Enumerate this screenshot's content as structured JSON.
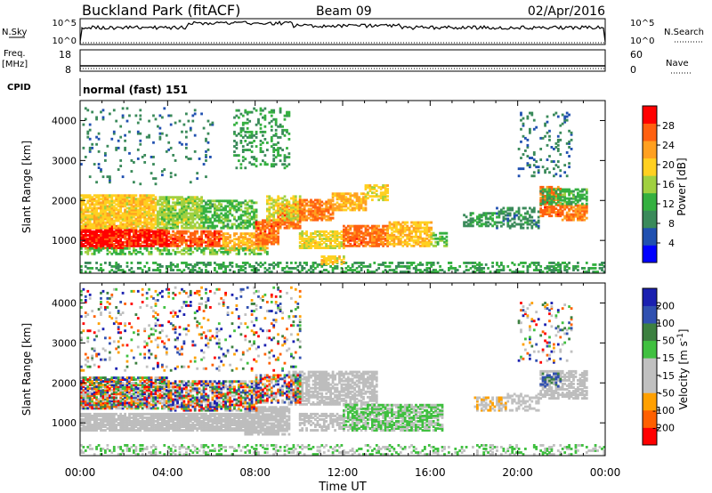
{
  "header": {
    "station": "Buckland Park (fitACF)",
    "beam": "Beam 09",
    "date": "02/Apr/2016"
  },
  "nsky_panel": {
    "left_label": "N.Sky",
    "left_ticks": [
      "10^5",
      "10^0"
    ],
    "right_ticks": [
      "10^5",
      "10^0"
    ],
    "right_label": "N.Search"
  },
  "freq_panel": {
    "left_label_1": "Freq.",
    "left_label_2": "[MHz]",
    "left_ticks": [
      "18",
      "8"
    ],
    "right_ticks": [
      "60",
      "0"
    ],
    "right_label": "Nave"
  },
  "cpid_panel": {
    "label": "CPID",
    "value": "normal (fast) 151"
  },
  "x_axis": {
    "label": "Time UT",
    "ticks": [
      "00:00",
      "04:00",
      "08:00",
      "12:00",
      "16:00",
      "20:00",
      "00:00"
    ]
  },
  "colors": {
    "power": [
      "#0000ff",
      "#2050b0",
      "#3a8a5a",
      "#34b040",
      "#a0d040",
      "#ffd020",
      "#ffa020",
      "#ff6010",
      "#ff0000"
    ],
    "velocity": [
      "#ff0000",
      "#ff6000",
      "#ffa000",
      "#c0c0c0",
      "#c0c0c0",
      "#40c040",
      "#3c8040",
      "#3050b0",
      "#1a20b0"
    ],
    "ground_scatter": "#bdbdbd"
  },
  "chart_data": [
    {
      "type": "heatmap",
      "name": "power-panel",
      "x_unit": "hours UT",
      "xlim": [
        0,
        24
      ],
      "ylabel": "Slant Range [km]",
      "ylim": [
        180,
        4500
      ],
      "yticks": [
        1000,
        2000,
        3000,
        4000
      ],
      "colorbar": {
        "label": "Power [dB]",
        "range": [
          0,
          32
        ],
        "ticks": [
          4,
          8,
          12,
          16,
          20,
          24,
          28
        ]
      },
      "regions": [
        {
          "t": [
            0.0,
            2.0
          ],
          "r": [
            800,
            1350
          ],
          "v": 30,
          "d": 0.9
        },
        {
          "t": [
            2.0,
            4.0
          ],
          "r": [
            850,
            1300
          ],
          "v": 29,
          "d": 0.9
        },
        {
          "t": [
            4.0,
            6.5
          ],
          "r": [
            850,
            1250
          ],
          "v": 27,
          "d": 0.85
        },
        {
          "t": [
            6.5,
            8.5
          ],
          "r": [
            750,
            1200
          ],
          "v": 22,
          "d": 0.7
        },
        {
          "t": [
            0.0,
            3.5
          ],
          "r": [
            1300,
            2150
          ],
          "v": 20,
          "d": 0.85
        },
        {
          "t": [
            3.5,
            5.5
          ],
          "r": [
            1300,
            2100
          ],
          "v": 16,
          "d": 0.75
        },
        {
          "t": [
            5.5,
            8.0
          ],
          "r": [
            1300,
            2000
          ],
          "v": 13,
          "d": 0.6
        },
        {
          "t": [
            0.0,
            8.5
          ],
          "r": [
            650,
            800
          ],
          "v": 14,
          "d": 0.5
        },
        {
          "t": [
            8.0,
            9.0
          ],
          "r": [
            900,
            1500
          ],
          "v": 26,
          "d": 0.8
        },
        {
          "t": [
            9.0,
            10.0
          ],
          "r": [
            1300,
            1900
          ],
          "v": 26,
          "d": 0.8
        },
        {
          "t": [
            8.5,
            10.0
          ],
          "r": [
            1500,
            2100
          ],
          "v": 18,
          "d": 0.6
        },
        {
          "t": [
            10.0,
            11.5
          ],
          "r": [
            1500,
            2000
          ],
          "v": 25,
          "d": 0.8
        },
        {
          "t": [
            11.5,
            13.0
          ],
          "r": [
            1750,
            2200
          ],
          "v": 22,
          "d": 0.7
        },
        {
          "t": [
            13.0,
            14.0
          ],
          "r": [
            2000,
            2400
          ],
          "v": 19,
          "d": 0.6
        },
        {
          "t": [
            10.0,
            12.0
          ],
          "r": [
            800,
            1250
          ],
          "v": 19,
          "d": 0.7
        },
        {
          "t": [
            12.0,
            14.0
          ],
          "r": [
            850,
            1350
          ],
          "v": 26,
          "d": 0.8
        },
        {
          "t": [
            14.0,
            16.0
          ],
          "r": [
            850,
            1450
          ],
          "v": 21,
          "d": 0.7
        },
        {
          "t": [
            16.0,
            16.8
          ],
          "r": [
            850,
            1200
          ],
          "v": 14,
          "d": 0.5
        },
        {
          "t": [
            7.0,
            9.5
          ],
          "r": [
            2800,
            4300
          ],
          "v": 11,
          "d": 0.25
        },
        {
          "t": [
            0.0,
            6.0
          ],
          "r": [
            2400,
            4300
          ],
          "v": 8,
          "d": 0.06
        },
        {
          "t": [
            0.0,
            24.0
          ],
          "r": [
            200,
            450
          ],
          "v": 11,
          "d": 0.35
        },
        {
          "t": [
            11.0,
            12.0
          ],
          "r": [
            400,
            600
          ],
          "v": 20,
          "d": 0.6
        },
        {
          "t": [
            17.5,
            19.0
          ],
          "r": [
            1350,
            1700
          ],
          "v": 11,
          "d": 0.55
        },
        {
          "t": [
            19.0,
            21.0
          ],
          "r": [
            1300,
            1800
          ],
          "v": 9,
          "d": 0.45
        },
        {
          "t": [
            21.0,
            22.0
          ],
          "r": [
            1600,
            2350
          ],
          "v": 26,
          "d": 0.8
        },
        {
          "t": [
            22.0,
            23.2
          ],
          "r": [
            1500,
            1900
          ],
          "v": 25,
          "d": 0.8
        },
        {
          "t": [
            21.0,
            23.2
          ],
          "r": [
            1900,
            2300
          ],
          "v": 12,
          "d": 0.6
        },
        {
          "t": [
            20.0,
            22.5
          ],
          "r": [
            2600,
            4200
          ],
          "v": 8,
          "d": 0.12
        }
      ]
    },
    {
      "type": "heatmap",
      "name": "velocity-panel",
      "x_unit": "hours UT",
      "xlim": [
        0,
        24
      ],
      "ylabel": "Slant Range [km]",
      "ylim": [
        180,
        4500
      ],
      "yticks": [
        1000,
        2000,
        3000,
        4000
      ],
      "colorbar": {
        "label": "Velocity [m s^-1]",
        "range": [
          -250,
          250
        ],
        "ticks": [
          200,
          100,
          50,
          15,
          -15,
          -50,
          -100,
          -200
        ]
      },
      "regions": [
        {
          "t": [
            0.0,
            7.5
          ],
          "r": [
            800,
            1250
          ],
          "v": 0,
          "d": 0.9,
          "g": true
        },
        {
          "t": [
            7.5,
            9.5
          ],
          "r": [
            700,
            1400
          ],
          "v": 0,
          "d": 0.85,
          "g": true
        },
        {
          "t": [
            9.5,
            13.5
          ],
          "r": [
            1450,
            2300
          ],
          "v": 0,
          "d": 0.7,
          "g": true
        },
        {
          "t": [
            0.0,
            4.0
          ],
          "r": [
            1350,
            2150
          ],
          "v": 0,
          "d": 0.85,
          "mix": true
        },
        {
          "t": [
            4.0,
            8.0
          ],
          "r": [
            1300,
            2050
          ],
          "v": 0,
          "d": 0.7,
          "mix": true
        },
        {
          "t": [
            8.0,
            10.0
          ],
          "r": [
            1500,
            2200
          ],
          "v": 0,
          "d": 0.6,
          "mix": true
        },
        {
          "t": [
            0.0,
            10.0
          ],
          "r": [
            2300,
            4400
          ],
          "v": 0,
          "d": 0.12,
          "mix": true
        },
        {
          "t": [
            10.0,
            12.0
          ],
          "r": [
            800,
            1250
          ],
          "v": 0,
          "d": 0.6,
          "g": true
        },
        {
          "t": [
            12.0,
            16.5
          ],
          "r": [
            800,
            1450
          ],
          "v": 35,
          "d": 0.75
        },
        {
          "t": [
            0.0,
            24.0
          ],
          "r": [
            200,
            450
          ],
          "v": 30,
          "d": 0.3
        },
        {
          "t": [
            18.0,
            19.5
          ],
          "r": [
            1300,
            1650
          ],
          "v": -70,
          "d": 0.6
        },
        {
          "t": [
            19.5,
            21.0
          ],
          "r": [
            1300,
            1750
          ],
          "v": -40,
          "d": 0.45
        },
        {
          "t": [
            21.0,
            23.2
          ],
          "r": [
            1600,
            2300
          ],
          "v": 0,
          "d": 0.7,
          "g": true
        },
        {
          "t": [
            21.0,
            22.0
          ],
          "r": [
            1900,
            2250
          ],
          "v": 150,
          "d": 0.4
        },
        {
          "t": [
            20.0,
            22.5
          ],
          "r": [
            2500,
            4000
          ],
          "v": 0,
          "d": 0.12,
          "mix": true
        }
      ]
    }
  ]
}
